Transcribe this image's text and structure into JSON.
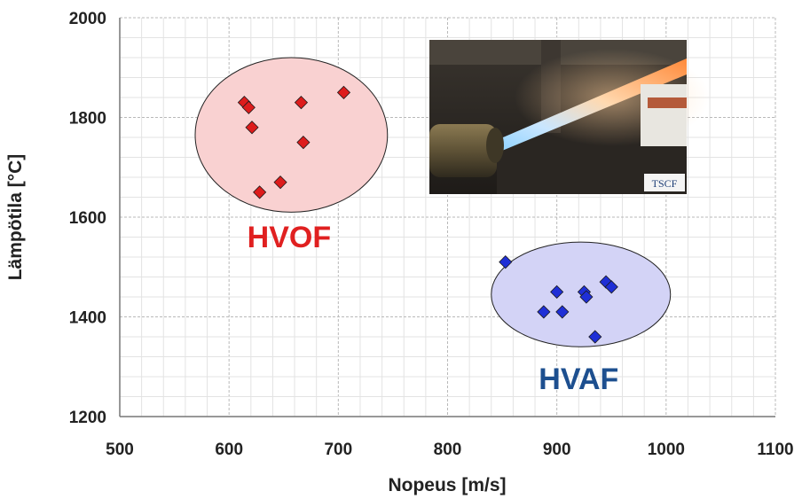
{
  "chart_data": {
    "type": "scatter",
    "xlabel": "Nopeus [m/s]",
    "ylabel": "Lämpötila [°C]",
    "xlim": [
      500,
      1100
    ],
    "ylim": [
      1200,
      2000
    ],
    "x_ticks": [
      500,
      600,
      700,
      800,
      900,
      1000,
      1100
    ],
    "y_ticks": [
      1200,
      1400,
      1600,
      1800,
      2000
    ],
    "grid": true,
    "series": [
      {
        "name": "HVOF",
        "color": "#dd1c1c",
        "marker": "diamond",
        "points": [
          {
            "x": 614,
            "y": 1830
          },
          {
            "x": 618,
            "y": 1820
          },
          {
            "x": 621,
            "y": 1780
          },
          {
            "x": 628,
            "y": 1650
          },
          {
            "x": 647,
            "y": 1670
          },
          {
            "x": 666,
            "y": 1830
          },
          {
            "x": 668,
            "y": 1750
          },
          {
            "x": 705,
            "y": 1850
          }
        ]
      },
      {
        "name": "HVAF",
        "color": "#1f2fd6",
        "marker": "diamond",
        "points": [
          {
            "x": 853,
            "y": 1510
          },
          {
            "x": 888,
            "y": 1410
          },
          {
            "x": 900,
            "y": 1450
          },
          {
            "x": 905,
            "y": 1410
          },
          {
            "x": 925,
            "y": 1450
          },
          {
            "x": 927,
            "y": 1440
          },
          {
            "x": 935,
            "y": 1360
          },
          {
            "x": 945,
            "y": 1470
          },
          {
            "x": 950,
            "y": 1460
          }
        ]
      }
    ],
    "group_regions": [
      {
        "label": "HVOF",
        "label_color": "#e02020",
        "fill": "#f9d1d1",
        "cx": 657,
        "cy": 1765,
        "rx": 88,
        "ry": 155
      },
      {
        "label": "HVAF",
        "label_color": "#1d4f8f",
        "fill": "#d3d3f6",
        "cx": 922,
        "cy": 1445,
        "rx": 82,
        "ry": 105
      }
    ],
    "inset_photo": {
      "subject": "thermal spray gun flame",
      "badge": "TSCF"
    }
  }
}
